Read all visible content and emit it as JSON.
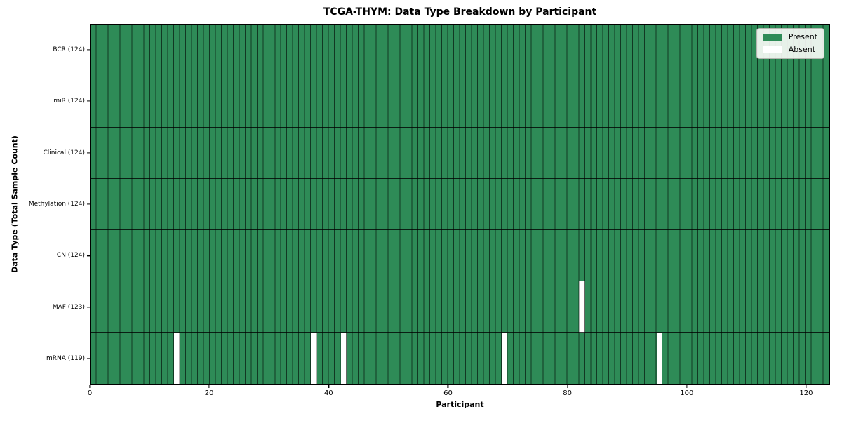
{
  "chart_data": {
    "type": "heatmap",
    "title": "TCGA-THYM: Data Type Breakdown by Participant",
    "xlabel": "Participant",
    "ylabel": "Data Type (Total Sample Count)",
    "n_participants": 124,
    "x_ticks": [
      0,
      20,
      40,
      60,
      80,
      100,
      120
    ],
    "rows": [
      {
        "data_type": "BCR",
        "label": "BCR (124)",
        "present_count": 124,
        "absent_participants": []
      },
      {
        "data_type": "miR",
        "label": "miR (124)",
        "present_count": 124,
        "absent_participants": []
      },
      {
        "data_type": "Clinical",
        "label": "Clinical (124)",
        "present_count": 124,
        "absent_participants": []
      },
      {
        "data_type": "Methylation",
        "label": "Methylation (124)",
        "present_count": 124,
        "absent_participants": []
      },
      {
        "data_type": "CN",
        "label": "CN (124)",
        "present_count": 124,
        "absent_participants": []
      },
      {
        "data_type": "MAF",
        "label": "MAF (123)",
        "present_count": 123,
        "absent_participants": [
          82
        ]
      },
      {
        "data_type": "mRNA",
        "label": "mRNA (119)",
        "present_count": 119,
        "absent_participants": [
          14,
          37,
          42,
          69,
          95
        ]
      }
    ],
    "legend": [
      {
        "label": "Present",
        "color": "#2E8B57"
      },
      {
        "label": "Absent",
        "color": "#FFFFFF"
      }
    ],
    "legend_position": "upper right",
    "grid": true,
    "colors": {
      "present": "#2E8B57",
      "absent": "#FFFFFF",
      "gridline_v": "rgba(0,0,0,0.6)",
      "gridline_h": "rgba(0,0,0,0.78)",
      "axis": "#000000"
    }
  }
}
